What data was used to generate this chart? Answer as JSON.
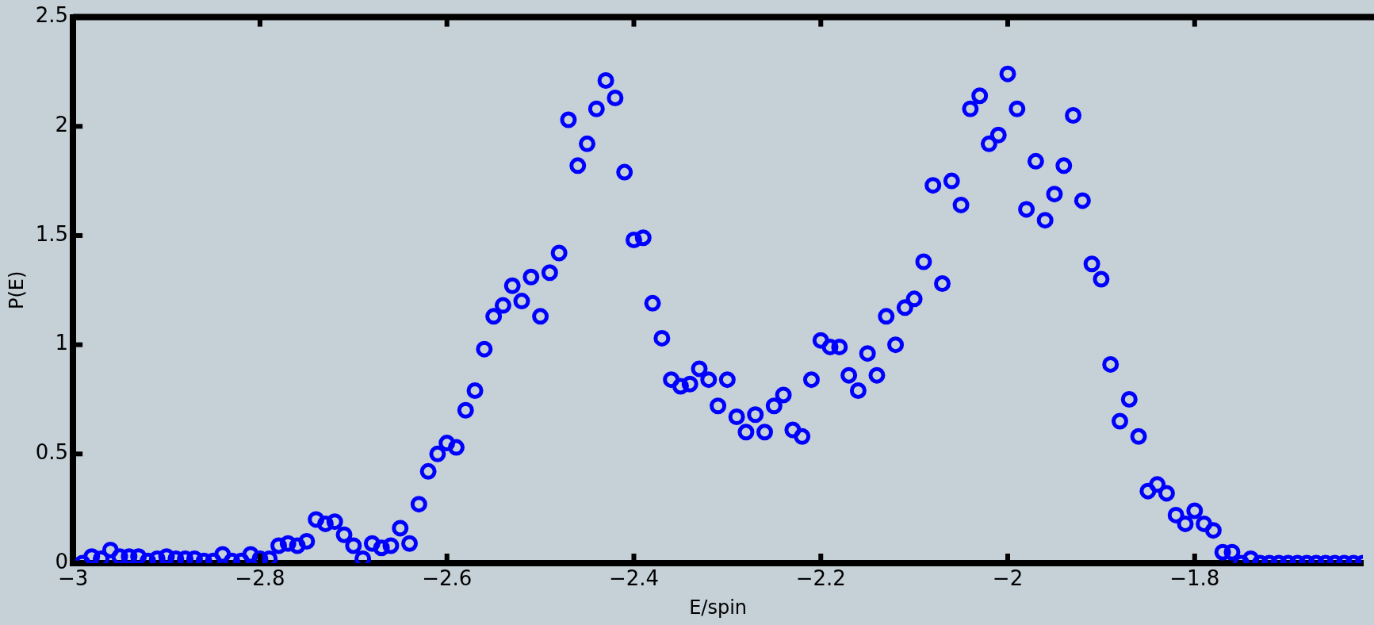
{
  "chart_data": {
    "type": "scatter",
    "xlabel": "E/spin",
    "ylabel": "P(E)",
    "x": [
      -2.99,
      -2.98,
      -2.97,
      -2.96,
      -2.95,
      -2.94,
      -2.93,
      -2.92,
      -2.91,
      -2.9,
      -2.89,
      -2.88,
      -2.87,
      -2.86,
      -2.85,
      -2.84,
      -2.83,
      -2.82,
      -2.81,
      -2.8,
      -2.79,
      -2.78,
      -2.77,
      -2.76,
      -2.75,
      -2.74,
      -2.73,
      -2.72,
      -2.71,
      -2.7,
      -2.69,
      -2.68,
      -2.67,
      -2.66,
      -2.65,
      -2.64,
      -2.63,
      -2.62,
      -2.61,
      -2.6,
      -2.59,
      -2.58,
      -2.57,
      -2.56,
      -2.55,
      -2.54,
      -2.53,
      -2.52,
      -2.51,
      -2.5,
      -2.49,
      -2.48,
      -2.47,
      -2.46,
      -2.45,
      -2.44,
      -2.43,
      -2.42,
      -2.41,
      -2.4,
      -2.39,
      -2.38,
      -2.37,
      -2.36,
      -2.35,
      -2.34,
      -2.33,
      -2.32,
      -2.31,
      -2.3,
      -2.29,
      -2.28,
      -2.27,
      -2.26,
      -2.25,
      -2.24,
      -2.23,
      -2.22,
      -2.21,
      -2.2,
      -2.19,
      -2.18,
      -2.17,
      -2.16,
      -2.15,
      -2.14,
      -2.13,
      -2.12,
      -2.11,
      -2.1,
      -2.09,
      -2.08,
      -2.07,
      -2.06,
      -2.05,
      -2.04,
      -2.03,
      -2.02,
      -2.01,
      -2.0,
      -1.99,
      -1.98,
      -1.97,
      -1.96,
      -1.95,
      -1.94,
      -1.93,
      -1.92,
      -1.91,
      -1.9,
      -1.89,
      -1.88,
      -1.87,
      -1.86,
      -1.85,
      -1.84,
      -1.83,
      -1.82,
      -1.81,
      -1.8,
      -1.79,
      -1.78,
      -1.77,
      -1.76,
      -1.75,
      -1.74,
      -1.73,
      -1.72,
      -1.71,
      -1.7,
      -1.69,
      -1.68,
      -1.67,
      -1.66,
      -1.65,
      -1.64,
      -1.63,
      -1.62
    ],
    "values": [
      0,
      0.03,
      0.02,
      0.06,
      0.03,
      0.03,
      0.03,
      0.01,
      0.02,
      0.03,
      0.02,
      0.02,
      0.02,
      0.01,
      0.01,
      0.04,
      0.01,
      0.01,
      0.04,
      0.02,
      0.02,
      0.08,
      0.09,
      0.08,
      0.1,
      0.2,
      0.18,
      0.19,
      0.13,
      0.08,
      0.02,
      0.09,
      0.07,
      0.08,
      0.16,
      0.09,
      0.27,
      0.42,
      0.5,
      0.55,
      0.53,
      0.7,
      0.79,
      0.98,
      1.13,
      1.18,
      1.27,
      1.2,
      1.31,
      1.13,
      1.33,
      1.42,
      2.03,
      1.82,
      1.92,
      2.08,
      2.21,
      2.13,
      1.79,
      1.48,
      1.49,
      1.19,
      1.03,
      0.84,
      0.81,
      0.82,
      0.89,
      0.84,
      0.72,
      0.84,
      0.67,
      0.6,
      0.68,
      0.6,
      0.72,
      0.77,
      0.61,
      0.58,
      0.84,
      1.02,
      0.99,
      0.99,
      0.86,
      0.79,
      0.96,
      0.86,
      1.13,
      1.0,
      1.17,
      1.21,
      1.38,
      1.73,
      1.28,
      1.75,
      1.64,
      2.08,
      2.14,
      1.92,
      1.96,
      2.24,
      2.08,
      1.62,
      1.84,
      1.57,
      1.69,
      1.82,
      2.05,
      1.66,
      1.37,
      1.3,
      0.91,
      0.65,
      0.75,
      0.58,
      0.33,
      0.36,
      0.32,
      0.22,
      0.18,
      0.24,
      0.18,
      0.15,
      0.05,
      0.05,
      0,
      0.02,
      0,
      0,
      0,
      0,
      0,
      0,
      0,
      0,
      0,
      0,
      0,
      0
    ],
    "color": "#0000ff",
    "marker": "circle",
    "grid": false,
    "legend": false,
    "xlim": [
      -3,
      -1.62
    ],
    "ylim": [
      0,
      2.5
    ],
    "xticks": [
      {
        "value": -3,
        "label": "−3"
      },
      {
        "value": -2.8,
        "label": "−2.8"
      },
      {
        "value": -2.6,
        "label": "−2.6"
      },
      {
        "value": -2.4,
        "label": "−2.4"
      },
      {
        "value": -2.2,
        "label": "−2.2"
      },
      {
        "value": -2,
        "label": "−2"
      },
      {
        "value": -1.8,
        "label": "−1.8"
      }
    ],
    "yticks": [
      0,
      0.5,
      1,
      1.5,
      2,
      2.5
    ]
  }
}
